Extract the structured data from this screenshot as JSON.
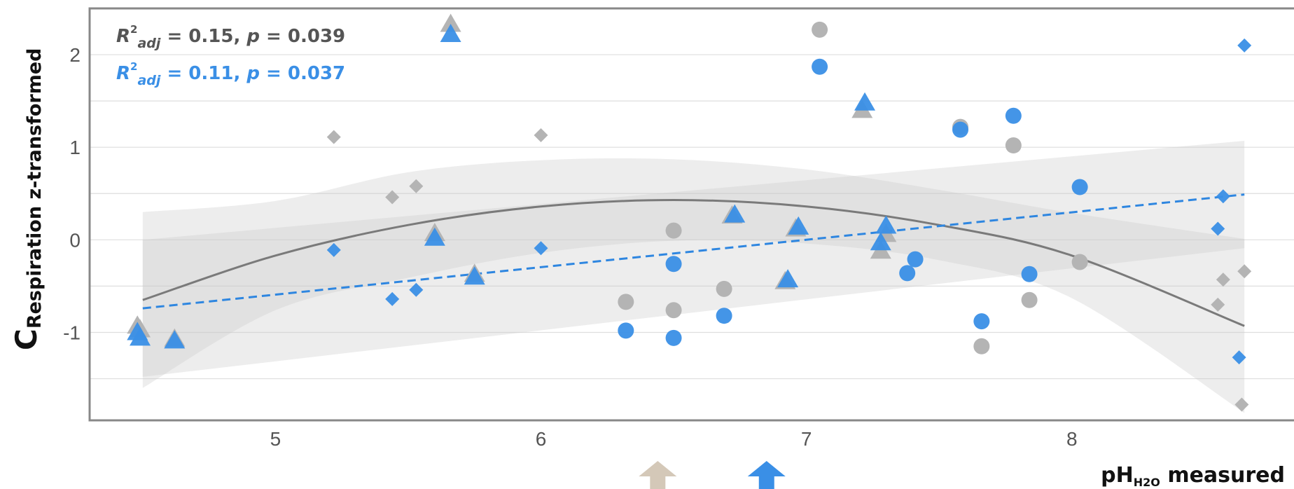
{
  "chart_data": {
    "type": "scatter",
    "title": "",
    "xlabel": {
      "main": "pH",
      "sub": "H2O",
      "suffix": " measured"
    },
    "ylabel": {
      "main": "C",
      "sub": "Respiration z-transformed"
    },
    "xlim": [
      4.3,
      8.85
    ],
    "ylim": [
      -1.95,
      2.5
    ],
    "xticks": [
      5,
      6,
      7,
      8
    ],
    "yticks": [
      -1,
      0,
      1,
      2
    ],
    "grid": true,
    "stats": [
      {
        "r_main": "R",
        "r_sup": "2",
        "r_sub": "adj",
        "eq": " = 0.15, ",
        "p": "p",
        "val": " = 0.039",
        "color": "#555555"
      },
      {
        "r_main": "R",
        "r_sup": "2",
        "r_sub": "adj",
        "eq": " = 0.11, ",
        "p": "p",
        "val": " = 0.037",
        "color": "#3a8fe6"
      }
    ],
    "series": [
      {
        "color": "#b4b4b4",
        "points": [
          {
            "x": 4.48,
            "y": -0.93,
            "shape": "triangle"
          },
          {
            "x": 4.49,
            "y": -0.97,
            "shape": "triangle"
          },
          {
            "x": 4.62,
            "y": -1.07,
            "shape": "triangle"
          },
          {
            "x": 5.22,
            "y": 1.11,
            "shape": "diamond"
          },
          {
            "x": 5.44,
            "y": 0.46,
            "shape": "diamond"
          },
          {
            "x": 5.53,
            "y": 0.58,
            "shape": "diamond"
          },
          {
            "x": 5.6,
            "y": 0.07,
            "shape": "triangle"
          },
          {
            "x": 5.66,
            "y": 2.33,
            "shape": "triangle"
          },
          {
            "x": 5.75,
            "y": -0.37,
            "shape": "triangle"
          },
          {
            "x": 6.0,
            "y": 1.13,
            "shape": "diamond"
          },
          {
            "x": 6.32,
            "y": -0.67,
            "shape": "circle"
          },
          {
            "x": 6.5,
            "y": 0.1,
            "shape": "circle"
          },
          {
            "x": 6.5,
            "y": -0.76,
            "shape": "circle"
          },
          {
            "x": 6.69,
            "y": -0.53,
            "shape": "circle"
          },
          {
            "x": 6.72,
            "y": 0.26,
            "shape": "triangle"
          },
          {
            "x": 6.92,
            "y": -0.45,
            "shape": "triangle"
          },
          {
            "x": 6.96,
            "y": 0.12,
            "shape": "triangle"
          },
          {
            "x": 7.05,
            "y": 2.27,
            "shape": "circle"
          },
          {
            "x": 7.21,
            "y": 1.4,
            "shape": "triangle"
          },
          {
            "x": 7.28,
            "y": -0.12,
            "shape": "triangle"
          },
          {
            "x": 7.3,
            "y": 0.06,
            "shape": "triangle"
          },
          {
            "x": 7.58,
            "y": 1.22,
            "shape": "circle"
          },
          {
            "x": 7.66,
            "y": -1.15,
            "shape": "circle"
          },
          {
            "x": 7.78,
            "y": 1.02,
            "shape": "circle"
          },
          {
            "x": 7.84,
            "y": -0.65,
            "shape": "circle"
          },
          {
            "x": 8.03,
            "y": -0.24,
            "shape": "circle"
          },
          {
            "x": 8.55,
            "y": -0.7,
            "shape": "diamond"
          },
          {
            "x": 8.57,
            "y": -0.43,
            "shape": "diamond"
          },
          {
            "x": 8.65,
            "y": -0.34,
            "shape": "diamond"
          },
          {
            "x": 8.64,
            "y": -1.78,
            "shape": "diamond"
          }
        ]
      },
      {
        "color": "#3a8fe6",
        "points": [
          {
            "x": 4.48,
            "y": -1.0,
            "shape": "triangle"
          },
          {
            "x": 4.49,
            "y": -1.06,
            "shape": "triangle"
          },
          {
            "x": 4.62,
            "y": -1.09,
            "shape": "triangle"
          },
          {
            "x": 5.22,
            "y": -0.11,
            "shape": "diamond"
          },
          {
            "x": 5.44,
            "y": -0.64,
            "shape": "diamond"
          },
          {
            "x": 5.53,
            "y": -0.54,
            "shape": "diamond"
          },
          {
            "x": 5.6,
            "y": 0.02,
            "shape": "triangle"
          },
          {
            "x": 5.66,
            "y": 2.22,
            "shape": "triangle"
          },
          {
            "x": 5.75,
            "y": -0.4,
            "shape": "triangle"
          },
          {
            "x": 6.0,
            "y": -0.09,
            "shape": "diamond"
          },
          {
            "x": 6.32,
            "y": -0.98,
            "shape": "circle"
          },
          {
            "x": 6.5,
            "y": -0.26,
            "shape": "circle"
          },
          {
            "x": 6.5,
            "y": -1.06,
            "shape": "circle"
          },
          {
            "x": 6.69,
            "y": -0.82,
            "shape": "circle"
          },
          {
            "x": 6.73,
            "y": 0.27,
            "shape": "triangle"
          },
          {
            "x": 6.93,
            "y": -0.43,
            "shape": "triangle"
          },
          {
            "x": 6.97,
            "y": 0.14,
            "shape": "triangle"
          },
          {
            "x": 7.05,
            "y": 1.87,
            "shape": "circle"
          },
          {
            "x": 7.22,
            "y": 1.48,
            "shape": "triangle"
          },
          {
            "x": 7.28,
            "y": -0.03,
            "shape": "triangle"
          },
          {
            "x": 7.3,
            "y": 0.15,
            "shape": "triangle"
          },
          {
            "x": 7.38,
            "y": -0.36,
            "shape": "circle"
          },
          {
            "x": 7.41,
            "y": -0.21,
            "shape": "circle"
          },
          {
            "x": 7.58,
            "y": 1.19,
            "shape": "circle"
          },
          {
            "x": 7.66,
            "y": -0.88,
            "shape": "circle"
          },
          {
            "x": 7.78,
            "y": 1.34,
            "shape": "circle"
          },
          {
            "x": 7.84,
            "y": -0.37,
            "shape": "circle"
          },
          {
            "x": 8.03,
            "y": 0.57,
            "shape": "circle"
          },
          {
            "x": 8.55,
            "y": 0.12,
            "shape": "diamond"
          },
          {
            "x": 8.57,
            "y": 0.47,
            "shape": "diamond"
          },
          {
            "x": 8.65,
            "y": 2.1,
            "shape": "diamond"
          },
          {
            "x": 8.63,
            "y": -1.27,
            "shape": "diamond"
          }
        ]
      }
    ],
    "fits": [
      {
        "style": "solid",
        "color": "#7a7a7a",
        "x": [
          4.5,
          5.0,
          5.5,
          6.0,
          6.5,
          7.0,
          7.5,
          8.0,
          8.65
        ],
        "y": [
          -0.65,
          -0.17,
          0.16,
          0.36,
          0.43,
          0.36,
          0.16,
          -0.17,
          -0.93
        ],
        "band_upper": [
          0.3,
          0.42,
          0.73,
          0.86,
          0.87,
          0.76,
          0.54,
          0.29,
          0.01
        ],
        "band_lower": [
          -1.6,
          -0.76,
          -0.41,
          -0.14,
          -0.01,
          -0.04,
          -0.22,
          -0.63,
          -1.87
        ]
      },
      {
        "style": "dashed",
        "color": "#2e86e0",
        "x": [
          4.5,
          8.65
        ],
        "y": [
          -0.74,
          0.49
        ],
        "band_upper": [
          0.0,
          1.07
        ],
        "band_lower": [
          -1.48,
          -0.09
        ]
      }
    ]
  },
  "arrows": [
    {
      "value": 6.44,
      "color": "#d4c8b8"
    },
    {
      "value": 6.85,
      "color": "#3a8fe6"
    }
  ]
}
